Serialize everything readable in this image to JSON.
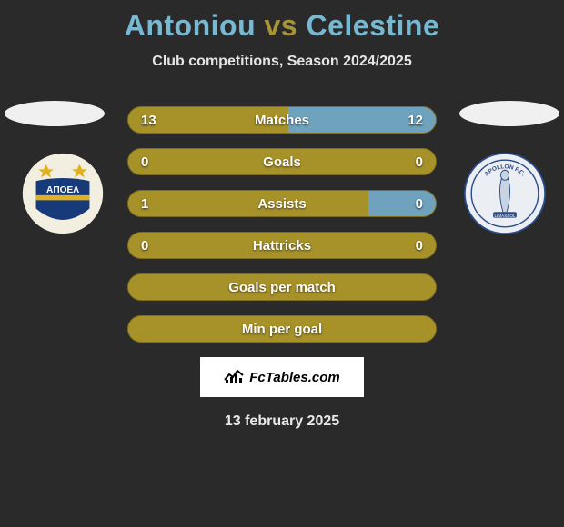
{
  "title": {
    "player_left": "Antoniou",
    "vs_word": "vs",
    "player_right": "Celestine",
    "color_left": "#78b8d0",
    "color_vs": "#a89436",
    "color_right": "#78b8d0"
  },
  "subtitle": "Club competitions, Season 2024/2025",
  "colors": {
    "left_bar": "#a79129",
    "right_bar": "#6fa3bd",
    "background": "#2a2a2a"
  },
  "bars": [
    {
      "label": "Matches",
      "left_value": "13",
      "right_value": "12",
      "left_weight": 13,
      "right_weight": 12
    },
    {
      "label": "Goals",
      "left_value": "0",
      "right_value": "0",
      "left_weight": 1,
      "right_weight": 0
    },
    {
      "label": "Assists",
      "left_value": "1",
      "right_value": "0",
      "left_weight": 0.78,
      "right_weight": 0.22
    },
    {
      "label": "Hattricks",
      "left_value": "0",
      "right_value": "0",
      "left_weight": 1,
      "right_weight": 0
    },
    {
      "label": "Goals per match",
      "left_value": "",
      "right_value": "",
      "left_weight": 1,
      "right_weight": 0
    },
    {
      "label": "Min per goal",
      "left_value": "",
      "right_value": "",
      "left_weight": 1,
      "right_weight": 0
    }
  ],
  "watermark": "FcTables.com",
  "date": "13 february 2025",
  "club_left": {
    "name": "APOEL",
    "bg": "#f3efe0",
    "primary": "#173a7a",
    "accent": "#e0b020"
  },
  "club_right": {
    "name": "Apollon Limassol",
    "bg": "#ebeef3",
    "primary": "#2a4a8a",
    "figure": "#c9d4e2"
  }
}
